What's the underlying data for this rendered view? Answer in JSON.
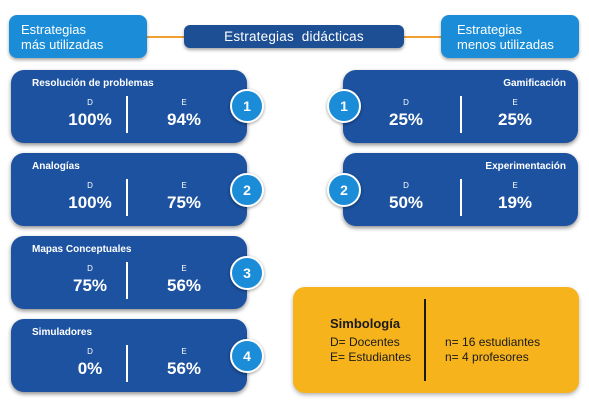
{
  "header": {
    "left": [
      "Estrategias",
      "más utilizadas"
    ],
    "center": "Estrategias  didácticas",
    "right": [
      "Estrategias",
      "menos utilizadas"
    ]
  },
  "mas_utilizadas": [
    {
      "rank": "1",
      "title": "Resolución de problemas",
      "d_label": "D",
      "d_value": "100%",
      "e_label": "E",
      "e_value": "94%"
    },
    {
      "rank": "2",
      "title": "Analogías",
      "d_label": "D",
      "d_value": "100%",
      "e_label": "E",
      "e_value": "75%"
    },
    {
      "rank": "3",
      "title": "Mapas Conceptuales",
      "d_label": "D",
      "d_value": "75%",
      "e_label": "E",
      "e_value": "56%"
    },
    {
      "rank": "4",
      "title": "Simuladores",
      "d_label": "D",
      "d_value": "0%",
      "e_label": "E",
      "e_value": "56%"
    }
  ],
  "menos_utilizadas": [
    {
      "rank": "1",
      "title": "Gamificación",
      "d_label": "D",
      "d_value": "25%",
      "e_label": "E",
      "e_value": "25%"
    },
    {
      "rank": "2",
      "title": "Experimentación",
      "d_label": "D",
      "d_value": "50%",
      "e_label": "E",
      "e_value": "19%"
    }
  ],
  "legend": {
    "title": "Simbología",
    "docentes": "D= Docentes",
    "estudiantes": "E= Estudiantes",
    "n_estudiantes": "n= 16 estudiantes",
    "n_profesores": "n= 4 profesores"
  },
  "colors": {
    "light_blue": "#1a8cd8",
    "dark_blue": "#1c52a0",
    "connector": "#f0a030",
    "legend_bg": "#f6b31b"
  }
}
